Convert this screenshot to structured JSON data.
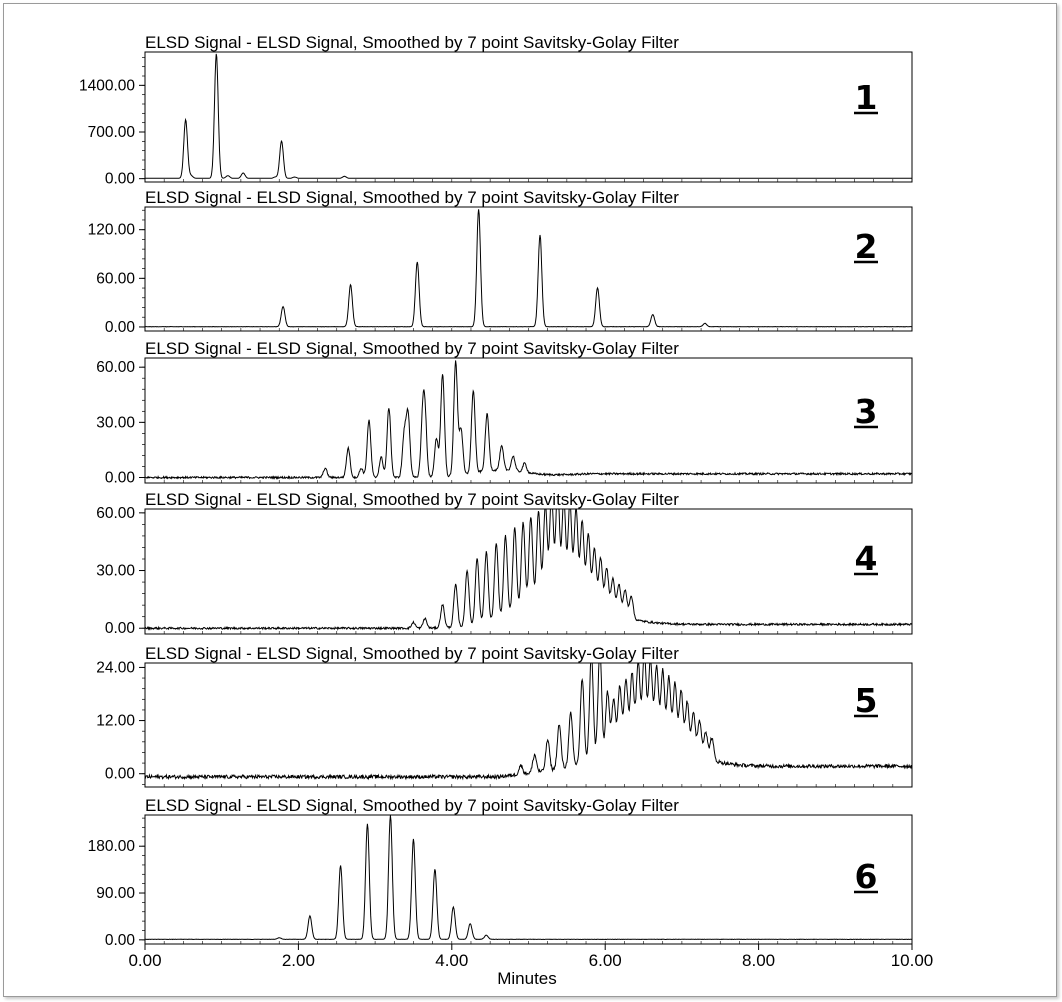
{
  "xlabel": "Minutes",
  "xticks": [
    "0.00",
    "2.00",
    "4.00",
    "6.00",
    "8.00",
    "10.00"
  ],
  "chart_data": [
    {
      "type": "line",
      "title": "ELSD Signal - ELSD Signal, Smoothed by 7 point Savitsky-Golay Filter",
      "panel_label": "1",
      "xlim": [
        0,
        10
      ],
      "ylim": [
        -50,
        1900
      ],
      "yticks": [
        "0.00",
        "700.00",
        "1400.00"
      ],
      "ytick_values": [
        0,
        700,
        1400
      ],
      "baseline": 5,
      "noise": 0,
      "drift": 0,
      "peaks": [
        {
          "x": 0.53,
          "y": 880
        },
        {
          "x": 0.6,
          "y": 40
        },
        {
          "x": 0.93,
          "y": 1870
        },
        {
          "x": 1.08,
          "y": 40
        },
        {
          "x": 1.28,
          "y": 80
        },
        {
          "x": 1.7,
          "y": 20
        },
        {
          "x": 1.78,
          "y": 560
        },
        {
          "x": 1.95,
          "y": 20
        },
        {
          "x": 2.6,
          "y": 30
        }
      ]
    },
    {
      "type": "line",
      "title": "ELSD Signal - ELSD Signal, Smoothed by 7 point Savitsky-Golay Filter",
      "panel_label": "2",
      "xlim": [
        0,
        10
      ],
      "ylim": [
        -5,
        148
      ],
      "yticks": [
        "0.00",
        "60.00",
        "120.00"
      ],
      "ytick_values": [
        0,
        60,
        120
      ],
      "baseline": 0.3,
      "noise": 0.2,
      "drift": 0,
      "peaks": [
        {
          "x": 1.8,
          "y": 25
        },
        {
          "x": 2.68,
          "y": 52
        },
        {
          "x": 3.55,
          "y": 80
        },
        {
          "x": 4.35,
          "y": 145
        },
        {
          "x": 5.15,
          "y": 113
        },
        {
          "x": 5.9,
          "y": 48
        },
        {
          "x": 6.62,
          "y": 15
        },
        {
          "x": 7.3,
          "y": 4
        }
      ]
    },
    {
      "type": "line",
      "title": "ELSD Signal - ELSD Signal, Smoothed by 7 point Savitsky-Golay Filter",
      "panel_label": "3",
      "xlim": [
        0,
        10
      ],
      "ylim": [
        -3,
        65
      ],
      "yticks": [
        "0.00",
        "30.00",
        "60.00"
      ],
      "ytick_values": [
        0,
        30,
        60
      ],
      "baseline": 0,
      "noise": 0.5,
      "drift": 2,
      "hump": {
        "center": 4.6,
        "width": 0.45,
        "height": 4
      },
      "peaks": [
        {
          "x": 2.35,
          "y": 5
        },
        {
          "x": 2.65,
          "y": 16
        },
        {
          "x": 2.82,
          "y": 5
        },
        {
          "x": 2.92,
          "y": 31
        },
        {
          "x": 3.08,
          "y": 11
        },
        {
          "x": 3.18,
          "y": 38
        },
        {
          "x": 3.38,
          "y": 23
        },
        {
          "x": 3.43,
          "y": 34
        },
        {
          "x": 3.62,
          "y": 28
        },
        {
          "x": 3.65,
          "y": 30
        },
        {
          "x": 3.8,
          "y": 21
        },
        {
          "x": 3.88,
          "y": 56
        },
        {
          "x": 4.05,
          "y": 62
        },
        {
          "x": 4.12,
          "y": 25
        },
        {
          "x": 4.28,
          "y": 45
        },
        {
          "x": 4.46,
          "y": 31
        },
        {
          "x": 4.65,
          "y": 13
        },
        {
          "x": 4.8,
          "y": 8
        },
        {
          "x": 4.95,
          "y": 5
        }
      ]
    },
    {
      "type": "line",
      "title": "ELSD Signal - ELSD Signal, Smoothed by 7 point Savitsky-Golay Filter",
      "panel_label": "4",
      "xlim": [
        0,
        10
      ],
      "ylim": [
        -3,
        62
      ],
      "yticks": [
        "0.00",
        "30.00",
        "60.00"
      ],
      "ytick_values": [
        0,
        30,
        60
      ],
      "baseline": 0,
      "noise": 0.5,
      "drift": 2,
      "hump": {
        "center": 5.4,
        "width": 0.75,
        "height": 14
      },
      "peaks": [
        {
          "x": 3.5,
          "y": 3
        },
        {
          "x": 3.65,
          "y": 5
        },
        {
          "x": 3.88,
          "y": 12
        },
        {
          "x": 4.05,
          "y": 22
        },
        {
          "x": 4.2,
          "y": 29
        },
        {
          "x": 4.33,
          "y": 35
        },
        {
          "x": 4.45,
          "y": 37
        },
        {
          "x": 4.58,
          "y": 40
        },
        {
          "x": 4.7,
          "y": 42
        },
        {
          "x": 4.82,
          "y": 44
        },
        {
          "x": 4.93,
          "y": 45
        },
        {
          "x": 5.03,
          "y": 46
        },
        {
          "x": 5.13,
          "y": 48
        },
        {
          "x": 5.22,
          "y": 50
        },
        {
          "x": 5.3,
          "y": 55
        },
        {
          "x": 5.38,
          "y": 59
        },
        {
          "x": 5.46,
          "y": 52
        },
        {
          "x": 5.54,
          "y": 50
        },
        {
          "x": 5.62,
          "y": 48
        },
        {
          "x": 5.7,
          "y": 42
        },
        {
          "x": 5.78,
          "y": 36
        },
        {
          "x": 5.86,
          "y": 30
        },
        {
          "x": 5.94,
          "y": 26
        },
        {
          "x": 6.02,
          "y": 22
        },
        {
          "x": 6.1,
          "y": 18
        },
        {
          "x": 6.18,
          "y": 16
        },
        {
          "x": 6.26,
          "y": 14
        },
        {
          "x": 6.34,
          "y": 12
        }
      ]
    },
    {
      "type": "line",
      "title": "ELSD Signal - ELSD Signal, Smoothed by 7 point Savitsky-Golay Filter",
      "panel_label": "5",
      "xlim": [
        0,
        10
      ],
      "ylim": [
        -3,
        25
      ],
      "yticks": [
        "0.00",
        "12.00",
        "24.00"
      ],
      "ytick_values": [
        0,
        12,
        24
      ],
      "baseline": -0.7,
      "noise": 0.4,
      "drift": 2.4,
      "hump": {
        "center": 6.6,
        "width": 0.65,
        "height": 6
      },
      "peaks": [
        {
          "x": 4.9,
          "y": 2
        },
        {
          "x": 5.08,
          "y": 4
        },
        {
          "x": 5.25,
          "y": 7
        },
        {
          "x": 5.4,
          "y": 10
        },
        {
          "x": 5.55,
          "y": 12
        },
        {
          "x": 5.7,
          "y": 19
        },
        {
          "x": 5.82,
          "y": 24
        },
        {
          "x": 5.93,
          "y": 24
        },
        {
          "x": 6.03,
          "y": 14
        },
        {
          "x": 6.11,
          "y": 12
        },
        {
          "x": 6.19,
          "y": 14
        },
        {
          "x": 6.27,
          "y": 15
        },
        {
          "x": 6.35,
          "y": 16
        },
        {
          "x": 6.43,
          "y": 18
        },
        {
          "x": 6.51,
          "y": 20
        },
        {
          "x": 6.59,
          "y": 18
        },
        {
          "x": 6.67,
          "y": 17
        },
        {
          "x": 6.75,
          "y": 16
        },
        {
          "x": 6.83,
          "y": 15
        },
        {
          "x": 6.91,
          "y": 14
        },
        {
          "x": 6.99,
          "y": 13
        },
        {
          "x": 7.07,
          "y": 11
        },
        {
          "x": 7.15,
          "y": 9
        },
        {
          "x": 7.23,
          "y": 8
        },
        {
          "x": 7.31,
          "y": 6
        },
        {
          "x": 7.39,
          "y": 5
        }
      ]
    },
    {
      "type": "line",
      "title": "ELSD Signal - ELSD Signal, Smoothed by 7 point Savitsky-Golay Filter",
      "panel_label": "6",
      "xlim": [
        0,
        10
      ],
      "ylim": [
        -8,
        240
      ],
      "yticks": [
        "0.00",
        "90.00",
        "180.00"
      ],
      "ytick_values": [
        0,
        90,
        180
      ],
      "baseline": 1,
      "noise": 0.3,
      "drift": 0,
      "peaks": [
        {
          "x": 1.75,
          "y": 3
        },
        {
          "x": 2.15,
          "y": 45
        },
        {
          "x": 2.55,
          "y": 142
        },
        {
          "x": 2.9,
          "y": 222
        },
        {
          "x": 3.2,
          "y": 238
        },
        {
          "x": 3.5,
          "y": 193
        },
        {
          "x": 3.78,
          "y": 135
        },
        {
          "x": 4.02,
          "y": 62
        },
        {
          "x": 4.24,
          "y": 30
        },
        {
          "x": 4.45,
          "y": 8
        }
      ]
    }
  ]
}
